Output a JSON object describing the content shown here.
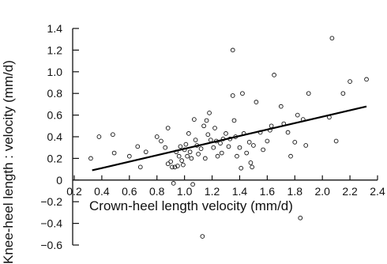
{
  "chart_data": {
    "type": "scatter",
    "title": "",
    "xlabel": "Crown-heel length velocity (mm/d)",
    "ylabel": "Knee-heel length : velocity (mm/d)",
    "xlim": [
      0.2,
      2.4
    ],
    "ylim": [
      -0.6,
      1.4
    ],
    "x_ticks": [
      "0.2",
      "0.4",
      "0.6",
      "0.8",
      "1.0",
      "1.2",
      "1.4",
      "1.6",
      "1.8",
      "2.0",
      "2.2",
      "2.4"
    ],
    "y_ticks": [
      "−0.6",
      "−0.4",
      "−0.2",
      "0",
      "0.2",
      "0.4",
      "0.6",
      "0.8",
      "1.0",
      "1.2",
      "1.4"
    ],
    "grid": false,
    "points": [
      {
        "x": 0.32,
        "y": 0.2
      },
      {
        "x": 0.38,
        "y": 0.4
      },
      {
        "x": 0.48,
        "y": 0.42
      },
      {
        "x": 0.49,
        "y": 0.25
      },
      {
        "x": 0.6,
        "y": 0.22
      },
      {
        "x": 0.66,
        "y": 0.31
      },
      {
        "x": 0.68,
        "y": 0.12
      },
      {
        "x": 0.72,
        "y": 0.26
      },
      {
        "x": 0.8,
        "y": 0.4
      },
      {
        "x": 0.83,
        "y": 0.36
      },
      {
        "x": 0.86,
        "y": 0.3
      },
      {
        "x": 0.88,
        "y": 0.48
      },
      {
        "x": 0.88,
        "y": 0.15
      },
      {
        "x": 0.9,
        "y": 0.17
      },
      {
        "x": 0.91,
        "y": 0.12
      },
      {
        "x": 0.92,
        "y": -0.03
      },
      {
        "x": 0.93,
        "y": 0.12
      },
      {
        "x": 0.94,
        "y": 0.26
      },
      {
        "x": 0.95,
        "y": 0.13
      },
      {
        "x": 0.96,
        "y": 0.22
      },
      {
        "x": 0.97,
        "y": 0.31
      },
      {
        "x": 0.98,
        "y": 0.18
      },
      {
        "x": 0.99,
        "y": 0.14
      },
      {
        "x": 1.0,
        "y": 0.28
      },
      {
        "x": 1.01,
        "y": 0.33
      },
      {
        "x": 1.02,
        "y": 0.22
      },
      {
        "x": 1.03,
        "y": 0.43
      },
      {
        "x": 1.04,
        "y": 0.26
      },
      {
        "x": 1.05,
        "y": 0.2
      },
      {
        "x": 1.06,
        "y": -0.04
      },
      {
        "x": 1.07,
        "y": 0.56
      },
      {
        "x": 1.08,
        "y": 0.37
      },
      {
        "x": 1.09,
        "y": 0.32
      },
      {
        "x": 1.1,
        "y": 0.24
      },
      {
        "x": 1.12,
        "y": 0.29
      },
      {
        "x": 1.14,
        "y": 0.5
      },
      {
        "x": 1.15,
        "y": 0.2
      },
      {
        "x": 1.16,
        "y": 0.55
      },
      {
        "x": 1.17,
        "y": 0.42
      },
      {
        "x": 1.18,
        "y": 0.62
      },
      {
        "x": 1.19,
        "y": 0.37
      },
      {
        "x": 1.21,
        "y": 0.3
      },
      {
        "x": 1.22,
        "y": 0.48
      },
      {
        "x": 1.23,
        "y": 0.36
      },
      {
        "x": 1.24,
        "y": 0.22
      },
      {
        "x": 1.26,
        "y": 0.34
      },
      {
        "x": 1.27,
        "y": 0.25
      },
      {
        "x": 1.28,
        "y": 0.38
      },
      {
        "x": 1.3,
        "y": 0.43
      },
      {
        "x": 1.32,
        "y": 0.31
      },
      {
        "x": 1.33,
        "y": 0.38
      },
      {
        "x": 1.35,
        "y": 1.2
      },
      {
        "x": 1.35,
        "y": 0.78
      },
      {
        "x": 1.36,
        "y": 0.55
      },
      {
        "x": 1.37,
        "y": 0.4
      },
      {
        "x": 1.38,
        "y": 0.22
      },
      {
        "x": 1.4,
        "y": 0.3
      },
      {
        "x": 1.41,
        "y": 0.11
      },
      {
        "x": 1.42,
        "y": 0.8
      },
      {
        "x": 1.43,
        "y": 0.43
      },
      {
        "x": 1.45,
        "y": 0.25
      },
      {
        "x": 1.47,
        "y": 0.35
      },
      {
        "x": 1.48,
        "y": 0.16
      },
      {
        "x": 1.49,
        "y": 0.12
      },
      {
        "x": 1.5,
        "y": 0.32
      },
      {
        "x": 1.52,
        "y": 0.72
      },
      {
        "x": 1.55,
        "y": 0.44
      },
      {
        "x": 1.57,
        "y": 0.28
      },
      {
        "x": 1.6,
        "y": 0.36
      },
      {
        "x": 1.62,
        "y": 0.46
      },
      {
        "x": 1.63,
        "y": 0.5
      },
      {
        "x": 1.65,
        "y": 0.97
      },
      {
        "x": 1.7,
        "y": 0.68
      },
      {
        "x": 1.72,
        "y": 0.52
      },
      {
        "x": 1.75,
        "y": 0.44
      },
      {
        "x": 1.77,
        "y": 0.22
      },
      {
        "x": 1.8,
        "y": 0.35
      },
      {
        "x": 1.82,
        "y": 0.6
      },
      {
        "x": 1.84,
        "y": -0.35
      },
      {
        "x": 1.86,
        "y": 0.56
      },
      {
        "x": 1.88,
        "y": 0.32
      },
      {
        "x": 1.9,
        "y": 0.8
      },
      {
        "x": 2.05,
        "y": 0.58
      },
      {
        "x": 2.07,
        "y": 1.31
      },
      {
        "x": 2.1,
        "y": 0.36
      },
      {
        "x": 2.15,
        "y": 0.8
      },
      {
        "x": 2.2,
        "y": 0.91
      },
      {
        "x": 2.32,
        "y": 0.93
      },
      {
        "x": 1.13,
        "y": -0.52
      }
    ],
    "trend_line": {
      "x": [
        0.33,
        2.32
      ],
      "y": [
        0.09,
        0.68
      ]
    },
    "colors": {
      "marker": "#111111",
      "line": "#000000",
      "axis": "#111111"
    }
  }
}
